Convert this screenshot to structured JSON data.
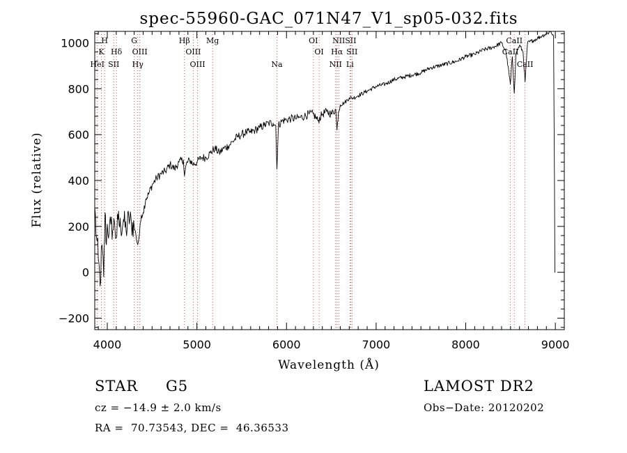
{
  "chart_data": {
    "type": "line",
    "title": "spec-55960-GAC_071N47_V1_sp05-032.fits",
    "xlabel": "Wavelength (Å)",
    "ylabel": "Flux (relative)",
    "xlim": [
      3860,
      9100
    ],
    "ylim": [
      -250,
      1050
    ],
    "x_ticks": [
      4000,
      5000,
      6000,
      7000,
      8000,
      9000
    ],
    "y_ticks": [
      -200,
      0,
      200,
      400,
      600,
      800,
      1000
    ],
    "grid": false,
    "series": [
      {
        "name": "",
        "x": [
          3860,
          3880,
          3900,
          3920,
          3940,
          3960,
          3975,
          3990,
          4000,
          4020,
          4040,
          4060,
          4080,
          4100,
          4120,
          4150,
          4180,
          4210,
          4240,
          4270,
          4300,
          4320,
          4340,
          4360,
          4380,
          4400,
          4430,
          4460,
          4500,
          4550,
          4600,
          4650,
          4700,
          4750,
          4800,
          4850,
          4861,
          4880,
          4920,
          4960,
          5000,
          5050,
          5100,
          5150,
          5200,
          5250,
          5300,
          5350,
          5400,
          5450,
          5500,
          5550,
          5600,
          5650,
          5700,
          5750,
          5800,
          5850,
          5880,
          5893,
          5910,
          5950,
          6000,
          6050,
          6100,
          6150,
          6200,
          6250,
          6300,
          6350,
          6400,
          6450,
          6500,
          6550,
          6563,
          6580,
          6600,
          6650,
          6700,
          6750,
          6800,
          6900,
          7000,
          7100,
          7200,
          7300,
          7400,
          7500,
          7600,
          7700,
          7800,
          7900,
          8000,
          8100,
          8200,
          8300,
          8400,
          8450,
          8498,
          8520,
          8542,
          8560,
          8600,
          8640,
          8662,
          8690,
          8750,
          8800,
          8850,
          8900,
          8950,
          8980,
          8990,
          8995,
          9000
        ],
        "y": [
          280,
          150,
          60,
          -60,
          120,
          -20,
          260,
          120,
          210,
          170,
          210,
          180,
          220,
          150,
          230,
          190,
          230,
          180,
          240,
          210,
          200,
          160,
          120,
          170,
          250,
          260,
          320,
          340,
          380,
          410,
          430,
          440,
          470,
          450,
          480,
          490,
          420,
          470,
          490,
          470,
          480,
          500,
          500,
          520,
          540,
          520,
          540,
          550,
          570,
          590,
          600,
          610,
          610,
          620,
          630,
          640,
          650,
          650,
          640,
          450,
          640,
          660,
          665,
          670,
          670,
          675,
          680,
          690,
          690,
          660,
          690,
          700,
          690,
          710,
          620,
          700,
          730,
          740,
          760,
          760,
          770,
          790,
          810,
          820,
          840,
          850,
          860,
          870,
          890,
          900,
          910,
          920,
          940,
          950,
          970,
          980,
          1000,
          960,
          820,
          940,
          780,
          950,
          990,
          960,
          830,
          1000,
          1010,
          1020,
          1030,
          1040,
          1050,
          1030,
          400,
          0,
          0
        ]
      }
    ],
    "line_labels": [
      {
        "x": 3970,
        "row": 0,
        "text": "H"
      },
      {
        "x": 3934,
        "row": 1,
        "text": "K"
      },
      {
        "x": 4102,
        "row": 1,
        "text": "Hδ"
      },
      {
        "x": 4300,
        "row": 0,
        "text": "G"
      },
      {
        "x": 4340,
        "row": 2,
        "text": "Hγ"
      },
      {
        "x": 4861,
        "row": 0,
        "text": "Hβ"
      },
      {
        "x": 5175,
        "row": 0,
        "text": "Mg"
      },
      {
        "x": 5893,
        "row": 2,
        "text": "Na"
      },
      {
        "x": 6300,
        "row": 0,
        "text": "OI"
      },
      {
        "x": 6563,
        "row": 1,
        "text": "Hα"
      },
      {
        "x": 6708,
        "row": 2,
        "text": "Li"
      },
      {
        "x": 8542,
        "row": 0,
        "text": "CaII"
      },
      {
        "x": 8498,
        "row": 1,
        "text": "CaII"
      },
      {
        "x": 8662,
        "row": 2,
        "text": "CaII"
      },
      {
        "x": 3889,
        "row": 2,
        "text": "HeI"
      },
      {
        "x": 4072,
        "row": 2,
        "text": "SII"
      },
      {
        "x": 4363,
        "row": 1,
        "text": "OIII"
      },
      {
        "x": 4959,
        "row": 1,
        "text": "OIII"
      },
      {
        "x": 5007,
        "row": 2,
        "text": "OIII"
      },
      {
        "x": 6364,
        "row": 1,
        "text": "OI"
      },
      {
        "x": 6548,
        "row": 2,
        "text": "NII"
      },
      {
        "x": 6583,
        "row": 0,
        "text": "NII"
      },
      {
        "x": 6716,
        "row": 0,
        "text": "SII"
      },
      {
        "x": 6731,
        "row": 1,
        "text": "SII"
      }
    ]
  },
  "info": {
    "class_label": "STAR",
    "subclass": "G5",
    "survey": "LAMOST DR2",
    "redshift": "cz = −14.9 ± 2.0 km/s",
    "obs_date": "Obs−Date: 20120202",
    "coords": "RA =  70.73543, DEC =  46.36533"
  }
}
